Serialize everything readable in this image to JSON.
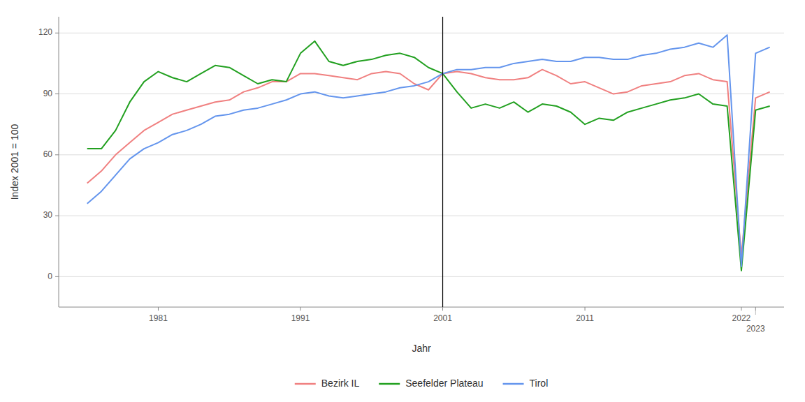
{
  "chart_data": {
    "type": "line",
    "x_label": "Jahr",
    "y_label": "Index 2001 = 100",
    "x": [
      1976,
      1977,
      1978,
      1979,
      1980,
      1981,
      1982,
      1983,
      1984,
      1985,
      1986,
      1987,
      1988,
      1989,
      1990,
      1991,
      1992,
      1993,
      1994,
      1995,
      1996,
      1997,
      1998,
      1999,
      2000,
      2001,
      2002,
      2003,
      2004,
      2005,
      2006,
      2007,
      2008,
      2009,
      2010,
      2011,
      2012,
      2013,
      2014,
      2015,
      2016,
      2017,
      2018,
      2019,
      2020,
      2021,
      2022,
      2023,
      2024
    ],
    "series": [
      {
        "name": "Bezirk IL",
        "color": "#F08080",
        "values": [
          46,
          52,
          60,
          66,
          72,
          76,
          80,
          82,
          84,
          86,
          87,
          91,
          93,
          96,
          96,
          100,
          100,
          99,
          98,
          97,
          100,
          101,
          100,
          95,
          92,
          100,
          101,
          100,
          98,
          97,
          97,
          98,
          102,
          99,
          95,
          96,
          93,
          90,
          91,
          94,
          95,
          96,
          99,
          100,
          97,
          96,
          10,
          88,
          91
        ]
      },
      {
        "name": "Seefelder Plateau",
        "color": "#22A020",
        "values": [
          63,
          63,
          72,
          86,
          96,
          101,
          98,
          96,
          100,
          104,
          103,
          99,
          95,
          97,
          96,
          110,
          116,
          106,
          104,
          106,
          107,
          109,
          110,
          108,
          103,
          100,
          91,
          83,
          85,
          83,
          86,
          81,
          85,
          84,
          81,
          75,
          78,
          77,
          81,
          83,
          85,
          87,
          88,
          90,
          85,
          84,
          3,
          82,
          84
        ]
      },
      {
        "name": "Tirol",
        "color": "#6495ED",
        "values": [
          36,
          42,
          50,
          58,
          63,
          66,
          70,
          72,
          75,
          79,
          80,
          82,
          83,
          85,
          87,
          90,
          91,
          89,
          88,
          89,
          90,
          91,
          93,
          94,
          96,
          100,
          102,
          102,
          103,
          103,
          105,
          106,
          107,
          106,
          106,
          108,
          108,
          107,
          107,
          109,
          110,
          112,
          113,
          115,
          113,
          119,
          5,
          110,
          113
        ]
      }
    ],
    "vline_x": 2001,
    "xlim": [
      1974,
      2025
    ],
    "xticks": [
      1981,
      1991,
      2001,
      2011,
      2022,
      2023
    ],
    "ylim": [
      -15,
      128
    ],
    "yticks": [
      0,
      30,
      60,
      90,
      120
    ],
    "grid": true,
    "legend": "bottom"
  }
}
